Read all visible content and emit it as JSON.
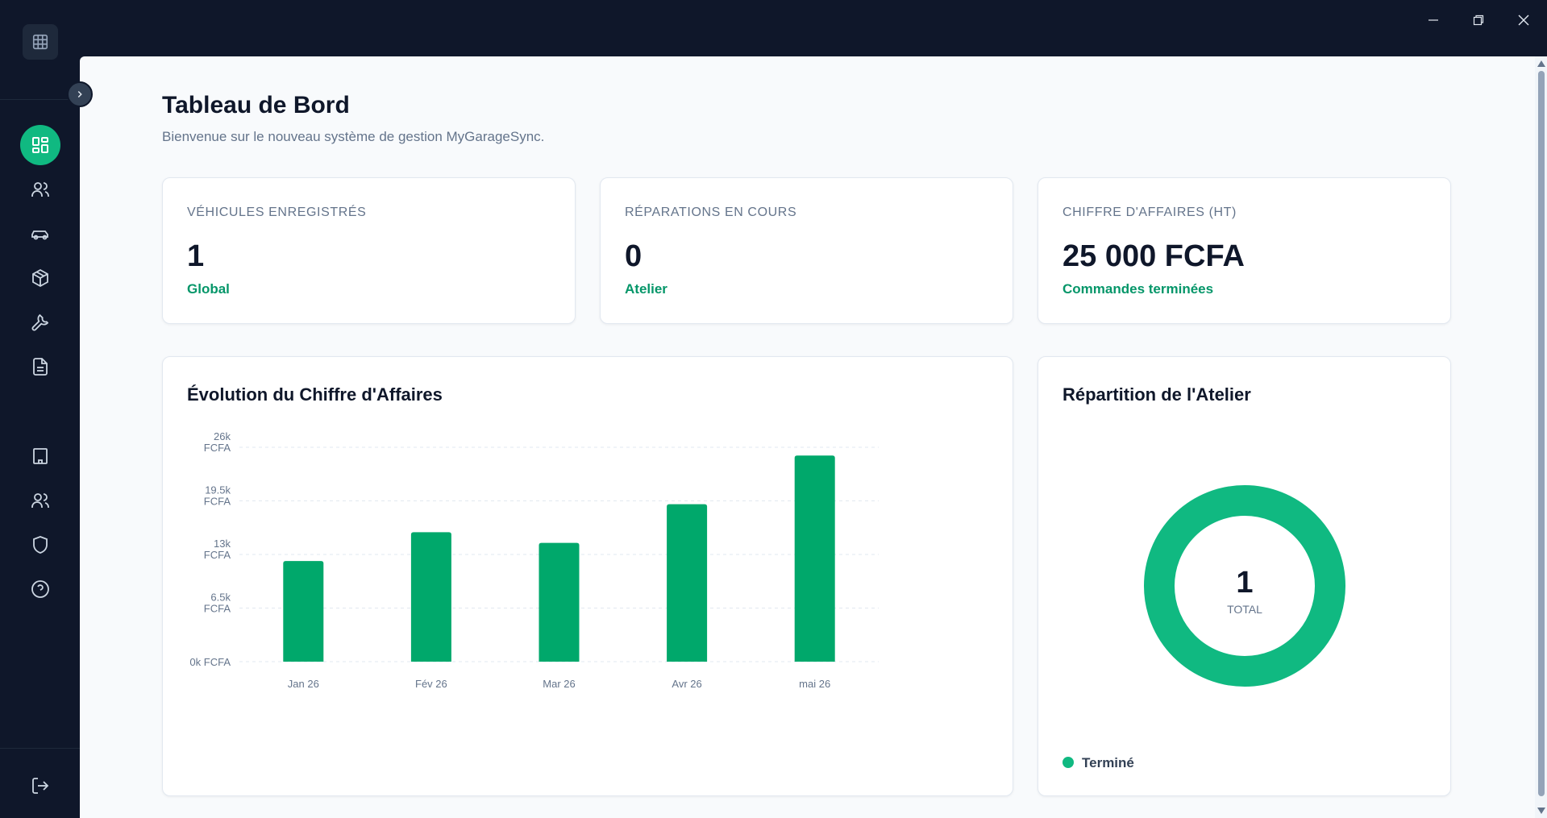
{
  "window": {
    "controls": [
      "minimize",
      "restore",
      "close"
    ]
  },
  "sidebar": {
    "logo_icon": "grid-icon",
    "top_items": [
      {
        "icon": "dashboard-icon",
        "active": true
      },
      {
        "icon": "users-icon",
        "active": false
      },
      {
        "icon": "car-icon",
        "active": false
      },
      {
        "icon": "package-icon",
        "active": false
      },
      {
        "icon": "wrench-icon",
        "active": false
      },
      {
        "icon": "document-icon",
        "active": false
      }
    ],
    "bottom_items": [
      {
        "icon": "building-icon"
      },
      {
        "icon": "team-icon"
      },
      {
        "icon": "shield-icon"
      },
      {
        "icon": "help-icon"
      }
    ],
    "logout_icon": "logout-icon"
  },
  "header": {
    "title": "Tableau de Bord",
    "subtitle": "Bienvenue sur le nouveau système de gestion MyGarageSync."
  },
  "stats": [
    {
      "label": "VÉHICULES ENREGISTRÉS",
      "value": "1",
      "sub": "Global"
    },
    {
      "label": "RÉPARATIONS EN COURS",
      "value": "0",
      "sub": "Atelier"
    },
    {
      "label": "CHIFFRE D'AFFAIRES (HT)",
      "value": "25 000 FCFA",
      "sub": "Commandes terminées"
    }
  ],
  "revenue_chart": {
    "title": "Évolution du Chiffre d'Affaires"
  },
  "chart_data": [
    {
      "type": "bar",
      "title": "Évolution du Chiffre d'Affaires",
      "categories": [
        "Jan 26",
        "Fév 26",
        "Mar 26",
        "Avr 26",
        "mai 26"
      ],
      "values": [
        12200,
        15700,
        14400,
        19100,
        25000
      ],
      "yticks": [
        {
          "value": 0,
          "lines": [
            "0k FCFA"
          ]
        },
        {
          "value": 6500,
          "lines": [
            "6.5k",
            "FCFA"
          ]
        },
        {
          "value": 13000,
          "lines": [
            "13k",
            "FCFA"
          ]
        },
        {
          "value": 19500,
          "lines": [
            "19.5k",
            "FCFA"
          ]
        },
        {
          "value": 26000,
          "lines": [
            "26k",
            "FCFA"
          ]
        }
      ],
      "ylim": [
        0,
        26000
      ],
      "grid": true,
      "color": "#00a86b"
    },
    {
      "type": "pie",
      "title": "Répartition de l'Atelier",
      "categories": [
        "Terminé"
      ],
      "values": [
        1
      ],
      "center_value": "1",
      "center_label": "TOTAL",
      "color": "#10b981",
      "legend": "bottom-left"
    }
  ],
  "workshop_chart": {
    "title": "Répartition de l'Atelier",
    "center_value": "1",
    "center_label": "TOTAL",
    "legend_label": "Terminé"
  },
  "colors": {
    "accent": "#10b981",
    "bar": "#00a86b",
    "sidebar_bg": "#0f172a"
  }
}
